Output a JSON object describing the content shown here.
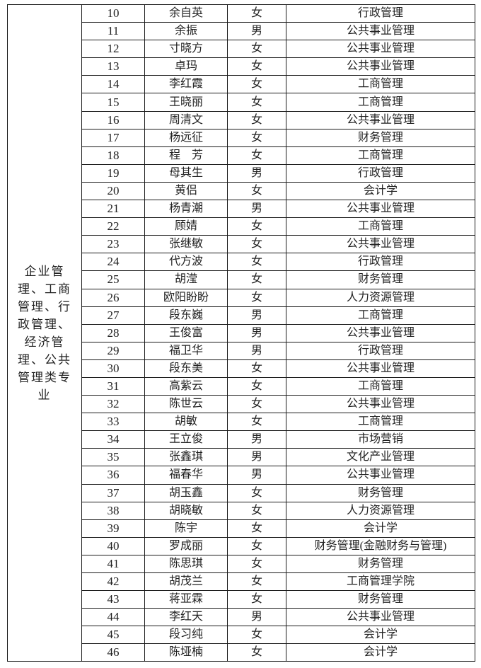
{
  "category_lines": [
    "企业管",
    "理、工商",
    "管理、行",
    "政管理、",
    "经济管",
    "理、公共",
    "管理类专",
    "业"
  ],
  "rows": [
    {
      "no": "10",
      "name": "余自英",
      "gender": "女",
      "major": "行政管理"
    },
    {
      "no": "11",
      "name": "余振",
      "gender": "男",
      "major": "公共事业管理"
    },
    {
      "no": "12",
      "name": "寸晓方",
      "gender": "女",
      "major": "公共事业管理"
    },
    {
      "no": "13",
      "name": "卓玛",
      "gender": "女",
      "major": "公共事业管理"
    },
    {
      "no": "14",
      "name": "李红霞",
      "gender": "女",
      "major": "工商管理"
    },
    {
      "no": "15",
      "name": "王晓丽",
      "gender": "女",
      "major": "工商管理"
    },
    {
      "no": "16",
      "name": "周清文",
      "gender": "女",
      "major": "公共事业管理"
    },
    {
      "no": "17",
      "name": "杨远征",
      "gender": "女",
      "major": "财务管理"
    },
    {
      "no": "18",
      "name": "程　芳",
      "gender": "女",
      "major": "工商管理"
    },
    {
      "no": "19",
      "name": "母其生",
      "gender": "男",
      "major": "行政管理"
    },
    {
      "no": "20",
      "name": "黄侣",
      "gender": "女",
      "major": "会计学"
    },
    {
      "no": "21",
      "name": "杨青潮",
      "gender": "男",
      "major": "公共事业管理"
    },
    {
      "no": "22",
      "name": "顾婧",
      "gender": "女",
      "major": "工商管理"
    },
    {
      "no": "23",
      "name": "张继敏",
      "gender": "女",
      "major": "公共事业管理"
    },
    {
      "no": "24",
      "name": "代方波",
      "gender": "女",
      "major": "行政管理"
    },
    {
      "no": "25",
      "name": "胡滢",
      "gender": "女",
      "major": "财务管理"
    },
    {
      "no": "26",
      "name": "欧阳盼盼",
      "gender": "女",
      "major": "人力资源管理"
    },
    {
      "no": "27",
      "name": "段东巍",
      "gender": "男",
      "major": "工商管理"
    },
    {
      "no": "28",
      "name": "王俊富",
      "gender": "男",
      "major": "公共事业管理"
    },
    {
      "no": "29",
      "name": "福卫华",
      "gender": "男",
      "major": "行政管理"
    },
    {
      "no": "30",
      "name": "段东美",
      "gender": "女",
      "major": "公共事业管理"
    },
    {
      "no": "31",
      "name": "高紫云",
      "gender": "女",
      "major": "工商管理"
    },
    {
      "no": "32",
      "name": "陈世云",
      "gender": "女",
      "major": "公共事业管理"
    },
    {
      "no": "33",
      "name": "胡敏",
      "gender": "女",
      "major": "工商管理"
    },
    {
      "no": "34",
      "name": "王立俊",
      "gender": "男",
      "major": "市场营销"
    },
    {
      "no": "35",
      "name": "张鑫琪",
      "gender": "男",
      "major": "文化产业管理"
    },
    {
      "no": "36",
      "name": "福春华",
      "gender": "男",
      "major": "公共事业管理"
    },
    {
      "no": "37",
      "name": "胡玉鑫",
      "gender": "女",
      "major": "财务管理"
    },
    {
      "no": "38",
      "name": "胡晓敏",
      "gender": "女",
      "major": "人力资源管理"
    },
    {
      "no": "39",
      "name": "陈宇",
      "gender": "女",
      "major": "会计学"
    },
    {
      "no": "40",
      "name": "罗成丽",
      "gender": "女",
      "major": "财务管理(金融财务与管理)"
    },
    {
      "no": "41",
      "name": "陈思琪",
      "gender": "女",
      "major": "财务管理"
    },
    {
      "no": "42",
      "name": "胡茂兰",
      "gender": "女",
      "major": "工商管理学院"
    },
    {
      "no": "43",
      "name": "蒋亚霖",
      "gender": "女",
      "major": "财务管理"
    },
    {
      "no": "44",
      "name": "李红天",
      "gender": "男",
      "major": "公共事业管理"
    },
    {
      "no": "45",
      "name": "段习纯",
      "gender": "女",
      "major": "会计学"
    },
    {
      "no": "46",
      "name": "陈垭楠",
      "gender": "女",
      "major": "会计学"
    }
  ]
}
